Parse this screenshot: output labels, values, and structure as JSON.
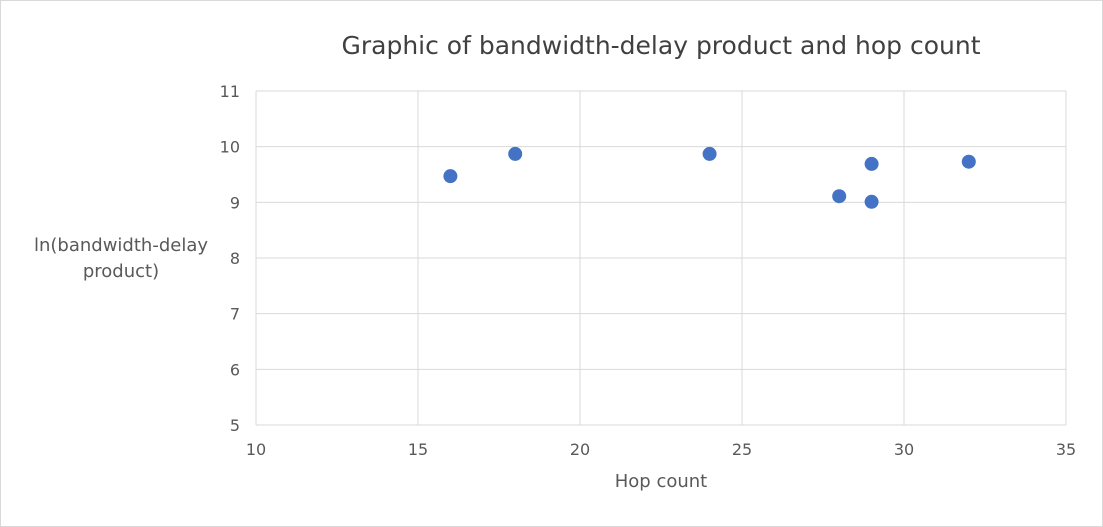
{
  "chart_data": {
    "type": "scatter",
    "title": "Graphic of bandwidth-delay product and hop count",
    "xlabel": "Hop count",
    "ylabel": "ln(bandwidth-delay product)",
    "xlim": [
      10,
      35
    ],
    "ylim": [
      5,
      11
    ],
    "xticks": [
      10,
      15,
      20,
      25,
      30,
      35
    ],
    "yticks": [
      5,
      6,
      7,
      8,
      9,
      10,
      11
    ],
    "grid": true,
    "legend": "none",
    "marker_color": "#4472c4",
    "gridline_color": "#d9d9d9",
    "points": [
      {
        "x": 16,
        "y": 9.47
      },
      {
        "x": 18,
        "y": 9.87
      },
      {
        "x": 24,
        "y": 9.87
      },
      {
        "x": 28,
        "y": 9.11
      },
      {
        "x": 29,
        "y": 9.69
      },
      {
        "x": 29,
        "y": 9.01
      },
      {
        "x": 32,
        "y": 9.73
      }
    ]
  }
}
